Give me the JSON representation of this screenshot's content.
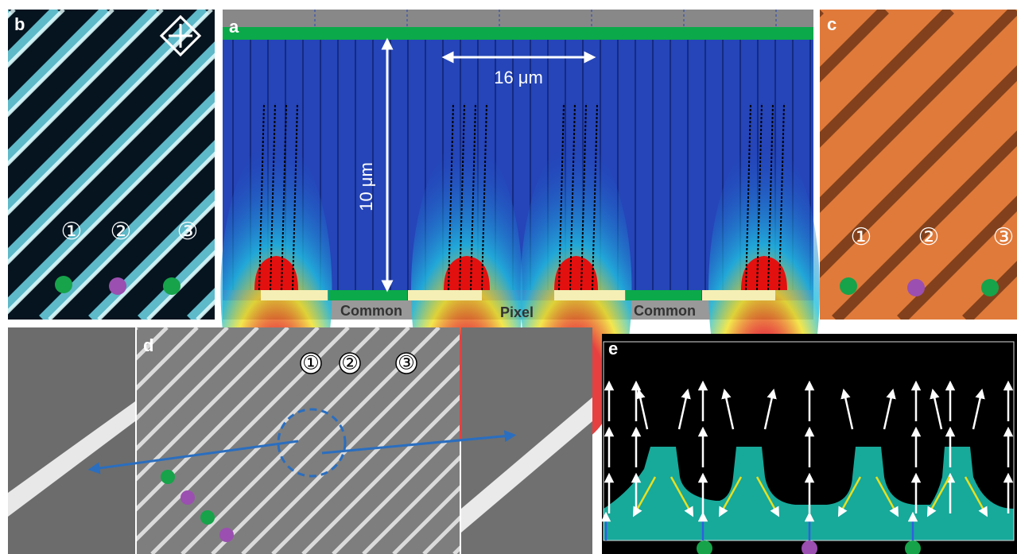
{
  "panels": {
    "a": {
      "label": "a",
      "width_label": "16 μm",
      "height_label": "10 μm",
      "electrodes": [
        "Common",
        "Pixel",
        "Common"
      ]
    },
    "b": {
      "label": "b",
      "markers": [
        "①",
        "②",
        "③"
      ]
    },
    "c": {
      "label": "c",
      "markers": [
        "①",
        "②",
        "③"
      ]
    },
    "d": {
      "label": "d",
      "markers": [
        "①",
        "②",
        "③"
      ]
    },
    "e": {
      "label": "e"
    }
  }
}
